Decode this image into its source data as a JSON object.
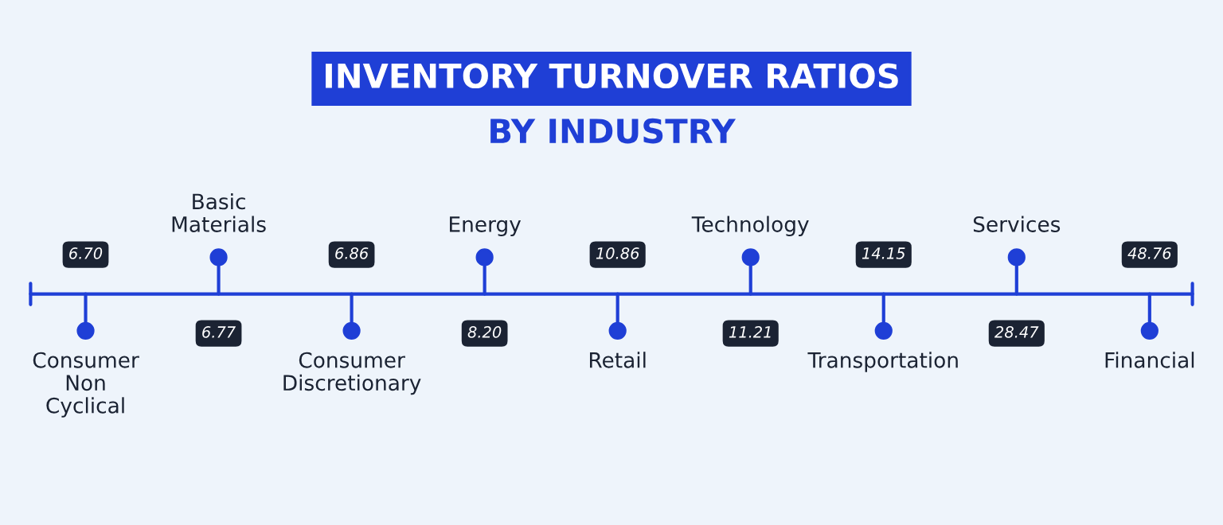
{
  "chart_data": {
    "type": "other",
    "title": "INVENTORY TURNOVER RATIOS",
    "subtitle": "BY INDUSTRY",
    "categories": [
      "Consumer\nNon\nCyclical",
      "Basic\nMaterials",
      "Consumer\nDiscretionary",
      "Energy",
      "Retail",
      "Technology",
      "Transportation",
      "Services",
      "Financial"
    ],
    "values": [
      6.7,
      6.77,
      6.86,
      8.2,
      10.86,
      11.21,
      14.15,
      28.47,
      48.76
    ],
    "value_labels": [
      "6.70",
      "6.77",
      "6.86",
      "8.20",
      "10.86",
      "11.21",
      "14.15",
      "28.47",
      "48.76"
    ]
  }
}
